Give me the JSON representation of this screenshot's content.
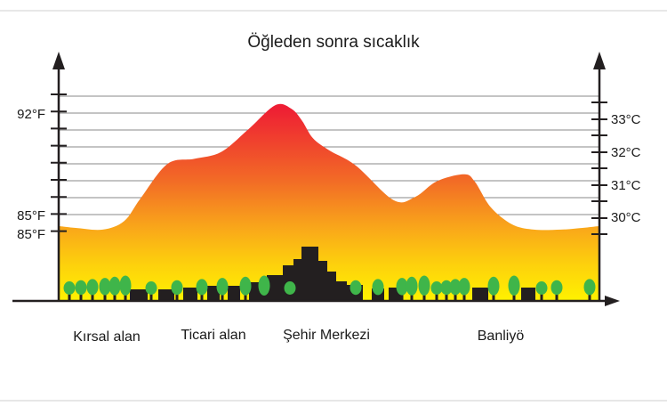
{
  "chart_data": {
    "type": "area",
    "title": "Öğleden sonra sıcaklık",
    "categories": [
      "Kırsal alan",
      "Ticari alan",
      "Şehir Merkezi",
      "Banliyö"
    ],
    "left_axis": {
      "unit": "°F",
      "tick_labels": [
        "92°F",
        "85°F",
        "85°F"
      ]
    },
    "right_axis": {
      "unit": "°C",
      "tick_labels": [
        "33°C",
        "32°C",
        "31°C",
        "30°C"
      ]
    },
    "series": [
      {
        "x": [
          0,
          0.03,
          0.08,
          0.12,
          0.15,
          0.2,
          0.25,
          0.3,
          0.35,
          0.4,
          0.43,
          0.45,
          0.47,
          0.5,
          0.55,
          0.62,
          0.66,
          0.7,
          0.75,
          0.77,
          0.8,
          0.84,
          0.88,
          0.93,
          0.97,
          1.0
        ],
        "values": [
          85.4,
          85.3,
          85.2,
          85.7,
          87.0,
          89.0,
          89.3,
          89.7,
          91.0,
          92.4,
          92.2,
          91.5,
          90.5,
          89.8,
          88.9,
          86.9,
          87.1,
          88.0,
          88.4,
          88.0,
          86.5,
          85.5,
          85.2,
          85.2,
          85.3,
          85.4
        ]
      }
    ],
    "gradient_colors": [
      "#ee1d34",
      "#f26b26",
      "#f9a61a",
      "#fdd20c",
      "#fff200"
    ],
    "grid": true,
    "legend": "none"
  }
}
